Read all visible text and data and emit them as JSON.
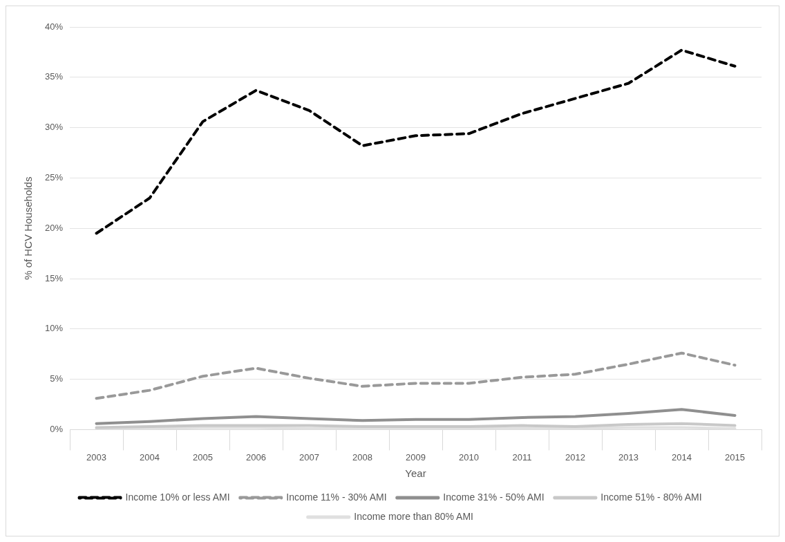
{
  "chart_data": {
    "type": "line",
    "xlabel": "Year",
    "ylabel": "% of HCV Households",
    "categories": [
      "2003",
      "2004",
      "2005",
      "2006",
      "2007",
      "2008",
      "2009",
      "2010",
      "2011",
      "2012",
      "2013",
      "2014",
      "2015"
    ],
    "series": [
      {
        "name": "Income 10% or less AMI",
        "color": "#000000",
        "line_style": "dashed",
        "values": [
          19.5,
          23,
          30.6,
          33.7,
          31.7,
          28.2,
          29.2,
          29.4,
          31.4,
          32.9,
          34.4,
          37.7,
          36.1
        ]
      },
      {
        "name": "Income 11% - 30% AMI",
        "color": "#999999",
        "line_style": "dashed",
        "values": [
          3.1,
          3.9,
          5.3,
          6.1,
          5.1,
          4.3,
          4.6,
          4.6,
          5.2,
          5.5,
          6.5,
          7.6,
          6.4
        ]
      },
      {
        "name": "Income 31% - 50% AMI",
        "color": "#8f8f8f",
        "line_style": "solid",
        "values": [
          0.6,
          0.8,
          1.1,
          1.3,
          1.1,
          0.9,
          1.0,
          1.0,
          1.2,
          1.3,
          1.6,
          2.0,
          1.4
        ]
      },
      {
        "name": "Income 51% - 80% AMI",
        "color": "#c8c8c8",
        "line_style": "solid",
        "values": [
          0.2,
          0.3,
          0.4,
          0.4,
          0.4,
          0.3,
          0.3,
          0.3,
          0.4,
          0.3,
          0.5,
          0.6,
          0.4
        ]
      },
      {
        "name": "Income more than 80% AMI",
        "color": "#e0e0e0",
        "line_style": "solid",
        "values": [
          0.1,
          0.1,
          0.2,
          0.2,
          0.1,
          0.1,
          0.1,
          0.1,
          0.1,
          0.1,
          0.2,
          0.2,
          0.1
        ]
      }
    ],
    "ylim": [
      0,
      40
    ],
    "yticks": [
      {
        "value": 0,
        "label": "0%"
      },
      {
        "value": 5,
        "label": "5%"
      },
      {
        "value": 10,
        "label": "10%"
      },
      {
        "value": 15,
        "label": "15%"
      },
      {
        "value": 20,
        "label": "20%"
      },
      {
        "value": 25,
        "label": "25%"
      },
      {
        "value": 30,
        "label": "30%"
      },
      {
        "value": 35,
        "label": "35%"
      },
      {
        "value": 40,
        "label": "40%"
      }
    ],
    "grid": "y",
    "legend": "bottom",
    "marker": "none"
  }
}
